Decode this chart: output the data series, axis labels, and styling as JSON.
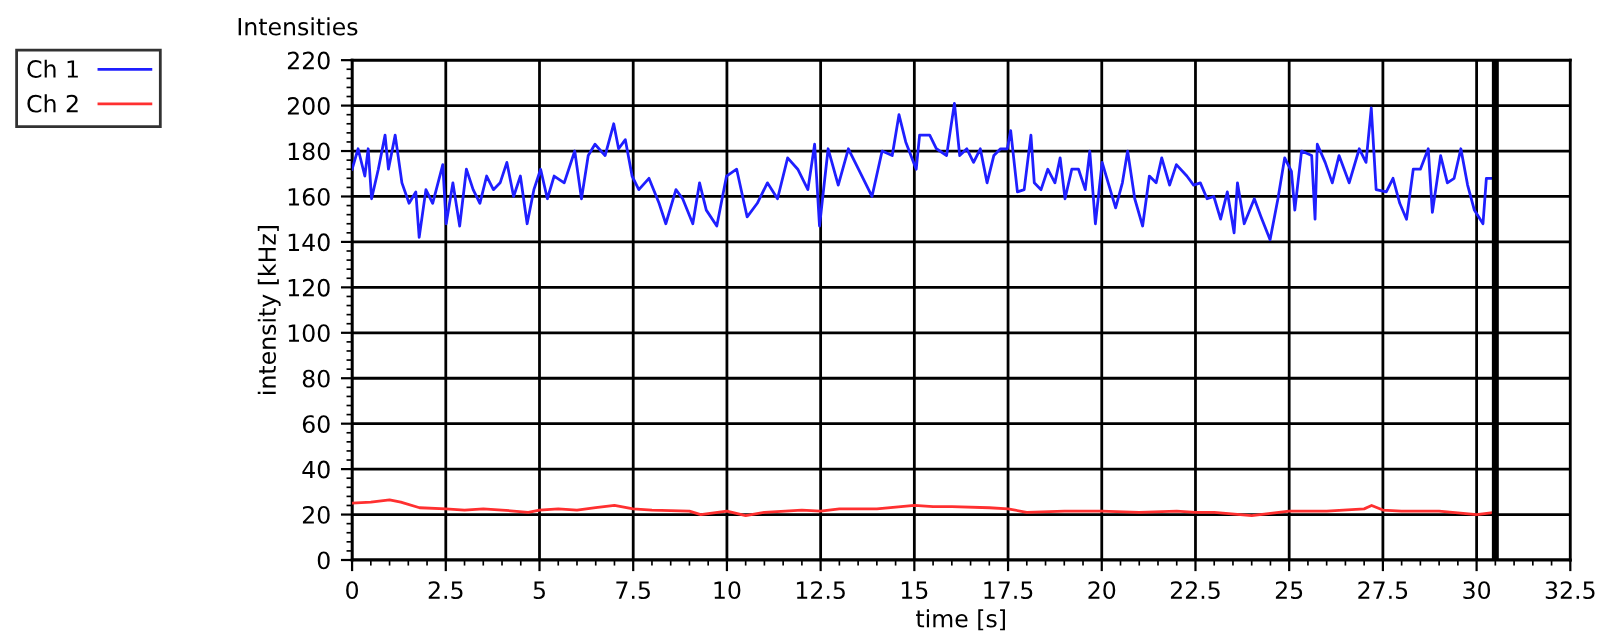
{
  "chart_data": {
    "type": "line",
    "title": "Intensities",
    "xlabel": "time [s]",
    "ylabel": "intensity [kHz]",
    "xlim": [
      0,
      32.5
    ],
    "ylim": [
      0,
      220
    ],
    "xticks": [
      0,
      2.5,
      5,
      7.5,
      10,
      12.5,
      15,
      17.5,
      20,
      22.5,
      25,
      27.5,
      30,
      32.5
    ],
    "yticks": [
      0,
      20,
      40,
      60,
      80,
      100,
      120,
      140,
      160,
      180,
      200,
      220
    ],
    "grid": true,
    "legend": "top left",
    "line_style": "solid",
    "marker": "none",
    "ref_lines": [
      {
        "axis": "x",
        "value": 30.5,
        "color": "#000000"
      }
    ],
    "series": [
      {
        "name": "Ch 1",
        "color": "#1f1fff",
        "x": [
          0,
          0.16,
          0.34,
          0.43,
          0.52,
          0.7,
          0.88,
          0.97,
          1.15,
          1.33,
          1.52,
          1.7,
          1.79,
          1.97,
          2.15,
          2.42,
          2.51,
          2.69,
          2.87,
          3.05,
          3.23,
          3.41,
          3.59,
          3.77,
          3.95,
          4.13,
          4.31,
          4.49,
          4.67,
          4.85,
          5.03,
          5.21,
          5.39,
          5.66,
          5.94,
          6.12,
          6.3,
          6.48,
          6.75,
          6.98,
          7.11,
          7.29,
          7.47,
          7.65,
          7.92,
          8.19,
          8.37,
          8.64,
          8.82,
          9.09,
          9.27,
          9.45,
          9.73,
          9.99,
          10.26,
          10.54,
          10.81,
          11.08,
          11.35,
          11.62,
          11.89,
          12.16,
          12.34,
          12.47,
          12.7,
          12.97,
          13.24,
          13.51,
          13.87,
          14.14,
          14.41,
          14.59,
          14.77,
          15.05,
          15.14,
          15.41,
          15.59,
          15.86,
          16.07,
          16.21,
          16.4,
          16.58,
          16.76,
          16.94,
          17.12,
          17.3,
          17.48,
          17.57,
          17.75,
          17.93,
          18.11,
          18.2,
          18.38,
          18.56,
          18.75,
          18.89,
          19.02,
          19.2,
          19.38,
          19.56,
          19.68,
          19.83,
          20.01,
          20.19,
          20.37,
          20.55,
          20.69,
          20.88,
          21.09,
          21.27,
          21.45,
          21.6,
          21.81,
          21.99,
          22.27,
          22.45,
          22.63,
          22.81,
          22.99,
          23.17,
          23.35,
          23.53,
          23.62,
          23.8,
          24.07,
          24.25,
          24.49,
          24.7,
          24.88,
          25.06,
          25.15,
          25.33,
          25.6,
          25.69,
          25.75,
          25.96,
          26.15,
          26.33,
          26.6,
          26.87,
          27.05,
          27.19,
          27.32,
          27.59,
          27.77,
          27.95,
          28.13,
          28.31,
          28.5,
          28.71,
          28.82,
          29.04,
          29.22,
          29.4,
          29.58,
          29.76,
          29.94,
          30.17,
          30.26,
          30.44
        ],
        "values": [
          172,
          181,
          169,
          181,
          159,
          172,
          187,
          172,
          187,
          166,
          157,
          162,
          142,
          163,
          157,
          174,
          148,
          166,
          147,
          172,
          163,
          157,
          169,
          163,
          166,
          175,
          160,
          169,
          148,
          163,
          172,
          159,
          169,
          166,
          180,
          159,
          178,
          183,
          178,
          192,
          181,
          185,
          169,
          163,
          168,
          157,
          148,
          163,
          159,
          148,
          166,
          154,
          147,
          169,
          172,
          151,
          157,
          166,
          159,
          177,
          172,
          163,
          183,
          147,
          181,
          165,
          181,
          172,
          160,
          180,
          178,
          196,
          184,
          172,
          187,
          187,
          181,
          178,
          201,
          178,
          181,
          175,
          181,
          166,
          178,
          181,
          181,
          189,
          162,
          163,
          187,
          166,
          163,
          172,
          166,
          177,
          159,
          172,
          172,
          163,
          180,
          148,
          175,
          165,
          155,
          166,
          180,
          159,
          147,
          169,
          166,
          177,
          165,
          174,
          169,
          165,
          166,
          159,
          160,
          150,
          162,
          144,
          166,
          148,
          159,
          151,
          141,
          159,
          177,
          171,
          154,
          180,
          178,
          150,
          183,
          175,
          166,
          178,
          166,
          181,
          175,
          199,
          163,
          162,
          168,
          157,
          150,
          172,
          172,
          181,
          153,
          178,
          166,
          168,
          181,
          165,
          154,
          148,
          168,
          168
        ]
      },
      {
        "name": "Ch 2",
        "color": "#ff3030",
        "x": [
          0,
          0.5,
          1.0,
          1.3,
          1.8,
          2.5,
          3,
          3.5,
          4,
          4.7,
          5,
          5.5,
          6,
          6.5,
          7,
          7.5,
          8,
          9,
          9.3,
          10,
          10.5,
          11,
          12,
          12.5,
          13,
          14,
          15,
          15.5,
          16,
          17,
          17.5,
          18,
          19,
          20,
          21,
          22,
          22.5,
          23,
          24,
          24.5,
          25,
          26,
          27,
          27.2,
          27.5,
          28,
          29,
          30,
          30.5
        ],
        "values": [
          25,
          25.5,
          26.5,
          25.5,
          23,
          22.5,
          22,
          22.5,
          22,
          21,
          22,
          22.5,
          22,
          23,
          24,
          22.5,
          22,
          21.5,
          20,
          21.5,
          19.5,
          21,
          22,
          21.5,
          22.5,
          22.5,
          24,
          23.5,
          23.5,
          23,
          22.5,
          21,
          21.5,
          21.5,
          21,
          21.5,
          21,
          21,
          19.5,
          20.5,
          21.5,
          21.5,
          22.5,
          24,
          22,
          21.5,
          21.5,
          20,
          21
        ]
      }
    ]
  }
}
